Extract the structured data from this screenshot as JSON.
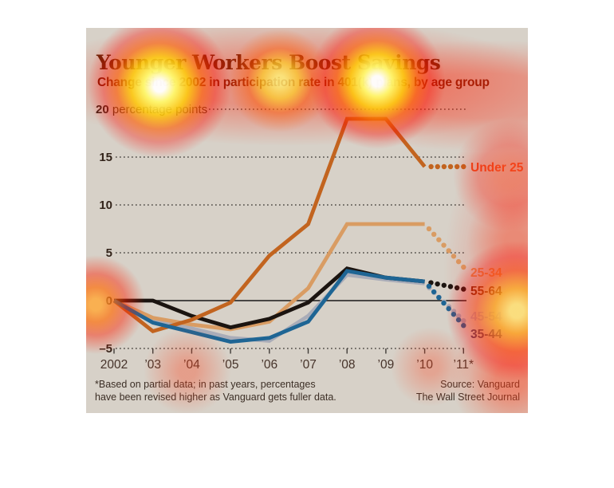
{
  "card": {
    "title": "Younger Workers Boost Savings",
    "subtitle": "Change since 2002 in participation rate in 401(k) plans, by age group",
    "footnote_line1": "*Based on partial data; in past years, percentages",
    "footnote_line2": "have been revised higher as Vanguard gets fuller data.",
    "source_line1": "Source: Vanguard",
    "source_line2": "The Wall Street Journal",
    "background_color": "#d7d1c8"
  },
  "chart_data": {
    "type": "line",
    "title": "Younger Workers Boost Savings",
    "subtitle": "Change since 2002 in participation rate in 401(k) plans, by age group",
    "x_labels": [
      "2002",
      "’03",
      "’04",
      "’05",
      "’06",
      "’07",
      "’08",
      "’09",
      "’10",
      "’11*"
    ],
    "y_ticks": [
      {
        "value": 20,
        "label": "20 percentage points"
      },
      {
        "value": 15,
        "label": "15"
      },
      {
        "value": 10,
        "label": "10"
      },
      {
        "value": 5,
        "label": "5"
      },
      {
        "value": 0,
        "label": "0"
      },
      {
        "value": -5,
        "label": "–5"
      }
    ],
    "ylim": [
      -5,
      21
    ],
    "grid": "dotted-horizontal",
    "zero_baseline": true,
    "projection_note": "2011 values shown as dots, based on partial data",
    "series": [
      {
        "label": "45-54",
        "color": "#a9acb8",
        "label_color": "#b3adc2",
        "values": [
          0,
          -2.0,
          -2.9,
          -3.9,
          -4.2,
          -1.6,
          2.7,
          2.2,
          1.8
        ],
        "projection_2011": -2.1
      },
      {
        "label": "25-34",
        "color": "#d99c63",
        "label_color": "#df8f4f",
        "values": [
          0,
          -1.8,
          -2.5,
          -3.0,
          -2.2,
          1.3,
          8.0,
          8.0,
          8.0
        ],
        "projection_2011": 3.5
      },
      {
        "label": "55-64",
        "color": "#1b1410",
        "label_color": "#70260b",
        "values": [
          0,
          0,
          -1.6,
          -2.8,
          -1.9,
          -0.2,
          3.35,
          2.4,
          2.0
        ],
        "projection_2011": 1.2
      },
      {
        "label": "Under 25",
        "color": "#c2641f",
        "label_color": "#e94e1f",
        "values": [
          0,
          -3.2,
          -2.0,
          -0.2,
          4.7,
          8.0,
          19.0,
          19.0,
          14.0
        ],
        "projection_2011": 14.0
      },
      {
        "label": "35-44",
        "color": "#1e6594",
        "label_color": "#474368",
        "values": [
          0,
          -2.3,
          -3.3,
          -4.3,
          -3.9,
          -2.2,
          3.1,
          2.4,
          2.0
        ],
        "projection_2011": -2.6
      }
    ]
  }
}
